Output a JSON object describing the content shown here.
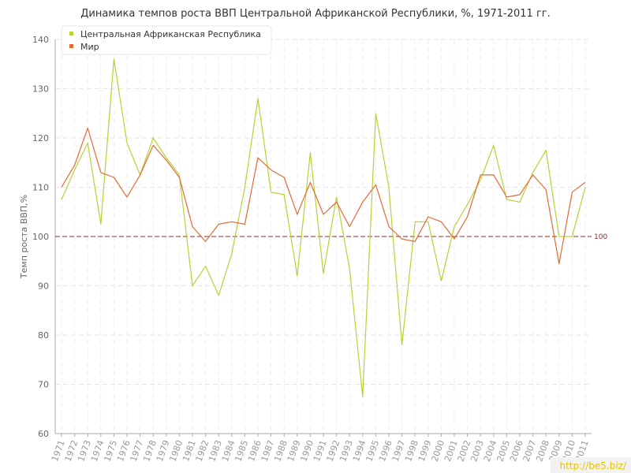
{
  "chart_data": {
    "type": "line",
    "title": "Динамика темпов роста ВВП Центральной Африканской Республики, %, 1971-2011 гг.",
    "ylabel": "Темп роста ВВП,%",
    "xlabel": "",
    "ylim": [
      60,
      140
    ],
    "yticks": [
      60,
      70,
      80,
      90,
      100,
      110,
      120,
      130,
      140
    ],
    "grid": true,
    "legend_position": "top-left",
    "x": [
      "1971",
      "1972",
      "1973",
      "1974",
      "1975",
      "1976",
      "1977",
      "1978",
      "1979",
      "1980",
      "1981",
      "1982",
      "1983",
      "1984",
      "1985",
      "1986",
      "1987",
      "1988",
      "1989",
      "1990",
      "1991",
      "1992",
      "1993",
      "1994",
      "1995",
      "1996",
      "1997",
      "1998",
      "1999",
      "2000",
      "2001",
      "2002",
      "2003",
      "2004",
      "2005",
      "2006",
      "2007",
      "2008",
      "2009",
      "2010",
      "2011"
    ],
    "series": [
      {
        "name": "Центральная Африканская Республика",
        "color": "#b5d334",
        "values": [
          107.5,
          113.5,
          119.0,
          102.5,
          136.0,
          119.0,
          112.5,
          120.0,
          116.0,
          112.5,
          90.0,
          94.0,
          88.0,
          96.5,
          110.0,
          128.0,
          109.0,
          108.5,
          92.0,
          117.0,
          92.5,
          108.0,
          93.5,
          67.5,
          125.0,
          110.0,
          78.0,
          103.0,
          103.0,
          91.0,
          102.0,
          106.5,
          111.5,
          118.5,
          107.5,
          107.0,
          113.0,
          117.5,
          100.0,
          100.0,
          110.0
        ]
      },
      {
        "name": "Мир",
        "color": "#e06b35",
        "values": [
          110.0,
          114.5,
          122.0,
          113.0,
          112.0,
          108.0,
          112.5,
          118.5,
          115.5,
          112.0,
          102.0,
          99.0,
          102.5,
          103.0,
          102.5,
          116.0,
          113.5,
          112.0,
          104.5,
          111.0,
          104.5,
          107.0,
          102.0,
          107.0,
          110.5,
          102.0,
          99.5,
          99.0,
          104.0,
          103.0,
          99.5,
          104.0,
          112.5,
          112.5,
          108.0,
          108.5,
          112.5,
          109.5,
          94.5,
          109.0,
          111.0
        ]
      }
    ],
    "reference_line": {
      "value": 100,
      "label": "100",
      "color": "#8b2c2c"
    }
  },
  "watermark": "http://be5.biz/"
}
